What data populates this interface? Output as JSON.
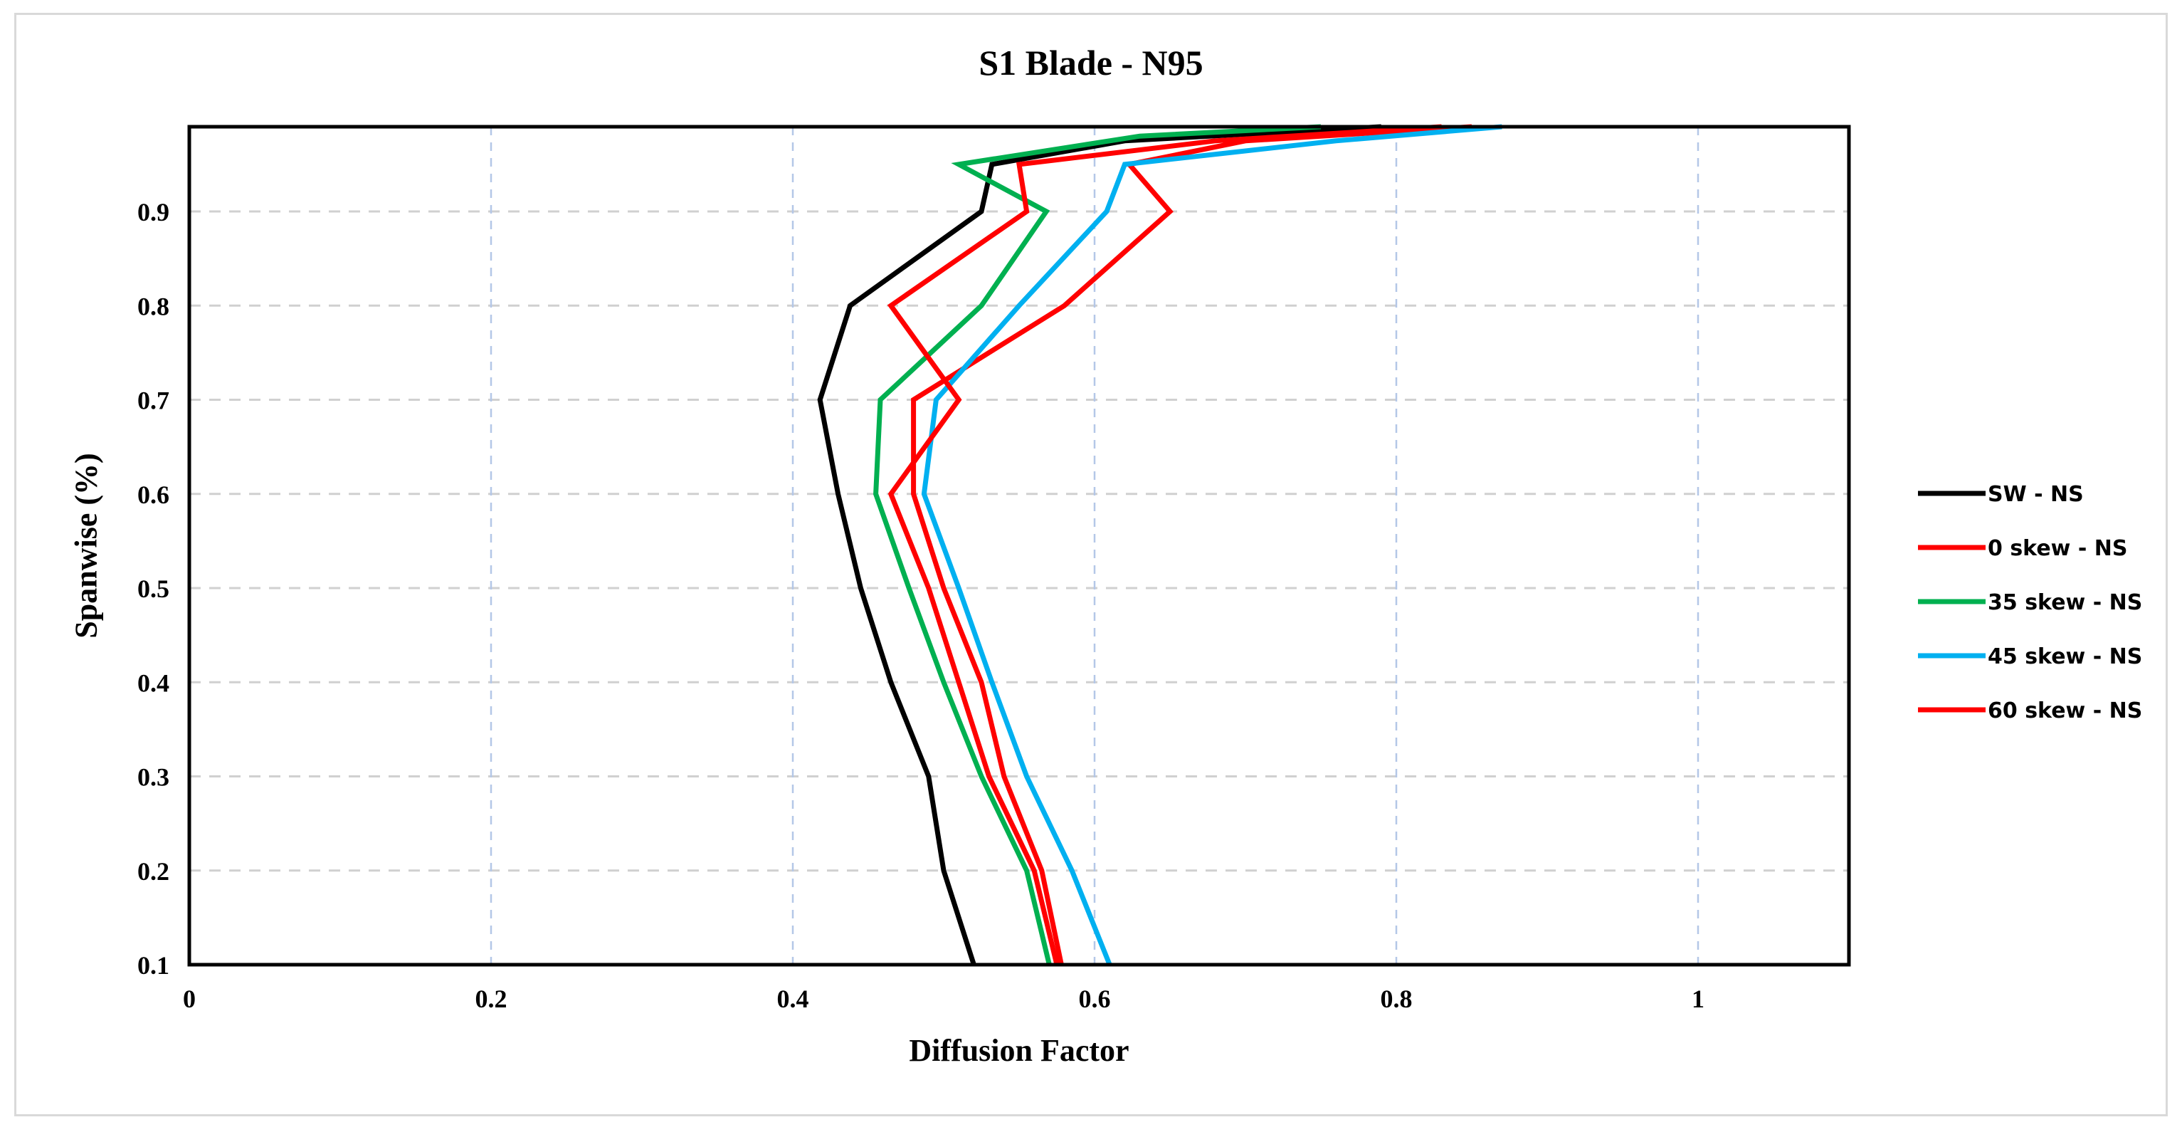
{
  "chart_data": {
    "type": "line",
    "title": "S1 Blade - N95",
    "xlabel": "Diffusion Factor",
    "ylabel": "Spanwise (%)",
    "xlim": [
      0,
      1.1
    ],
    "ylim": [
      0.1,
      0.99
    ],
    "xticks": [
      0,
      0.2,
      0.4,
      0.6,
      0.8,
      1
    ],
    "xtick_labels": [
      "0",
      "0.2",
      "0.4",
      "0.6",
      "0.8",
      "1"
    ],
    "yticks": [
      0.1,
      0.2,
      0.3,
      0.4,
      0.5,
      0.6,
      0.7,
      0.8,
      0.9
    ],
    "ytick_labels": [
      "0.1",
      "0.2",
      "0.3",
      "0.4",
      "0.5",
      "0.6",
      "0.7",
      "0.8",
      "0.9"
    ],
    "grid": true,
    "legend_position": "right",
    "series": [
      {
        "name": "SW - NS",
        "color": "#000000",
        "points": [
          [
            0.52,
            0.1
          ],
          [
            0.5,
            0.2
          ],
          [
            0.49,
            0.3
          ],
          [
            0.465,
            0.4
          ],
          [
            0.445,
            0.5
          ],
          [
            0.43,
            0.6
          ],
          [
            0.418,
            0.7
          ],
          [
            0.438,
            0.8
          ],
          [
            0.525,
            0.9
          ],
          [
            0.532,
            0.95
          ],
          [
            0.62,
            0.975
          ],
          [
            0.79,
            0.99
          ]
        ]
      },
      {
        "name": "0 skew - NS",
        "color": "#ff0000",
        "points": [
          [
            0.578,
            0.1
          ],
          [
            0.565,
            0.2
          ],
          [
            0.54,
            0.3
          ],
          [
            0.525,
            0.4
          ],
          [
            0.5,
            0.5
          ],
          [
            0.48,
            0.6
          ],
          [
            0.48,
            0.7
          ],
          [
            0.58,
            0.8
          ],
          [
            0.65,
            0.9
          ],
          [
            0.623,
            0.95
          ],
          [
            0.7,
            0.975
          ],
          [
            0.85,
            0.99
          ]
        ]
      },
      {
        "name": "35 skew - NS",
        "color": "#00b050",
        "points": [
          [
            0.57,
            0.1
          ],
          [
            0.555,
            0.2
          ],
          [
            0.525,
            0.3
          ],
          [
            0.5,
            0.4
          ],
          [
            0.477,
            0.5
          ],
          [
            0.455,
            0.6
          ],
          [
            0.458,
            0.7
          ],
          [
            0.525,
            0.8
          ],
          [
            0.568,
            0.9
          ],
          [
            0.51,
            0.95
          ],
          [
            0.63,
            0.98
          ],
          [
            0.75,
            0.99
          ]
        ]
      },
      {
        "name": "45 skew - NS",
        "color": "#00b0f0",
        "points": [
          [
            0.61,
            0.1
          ],
          [
            0.585,
            0.2
          ],
          [
            0.555,
            0.3
          ],
          [
            0.532,
            0.4
          ],
          [
            0.51,
            0.5
          ],
          [
            0.487,
            0.6
          ],
          [
            0.495,
            0.7
          ],
          [
            0.55,
            0.8
          ],
          [
            0.608,
            0.9
          ],
          [
            0.62,
            0.95
          ],
          [
            0.76,
            0.975
          ],
          [
            0.87,
            0.99
          ]
        ]
      },
      {
        "name": "60 skew - NS",
        "color": "#ff0000",
        "points": [
          [
            0.575,
            0.1
          ],
          [
            0.56,
            0.2
          ],
          [
            0.53,
            0.3
          ],
          [
            0.51,
            0.4
          ],
          [
            0.49,
            0.5
          ],
          [
            0.465,
            0.6
          ],
          [
            0.51,
            0.7
          ],
          [
            0.465,
            0.8
          ],
          [
            0.555,
            0.9
          ],
          [
            0.55,
            0.95
          ],
          [
            0.68,
            0.975
          ],
          [
            0.83,
            0.99
          ]
        ]
      }
    ]
  }
}
